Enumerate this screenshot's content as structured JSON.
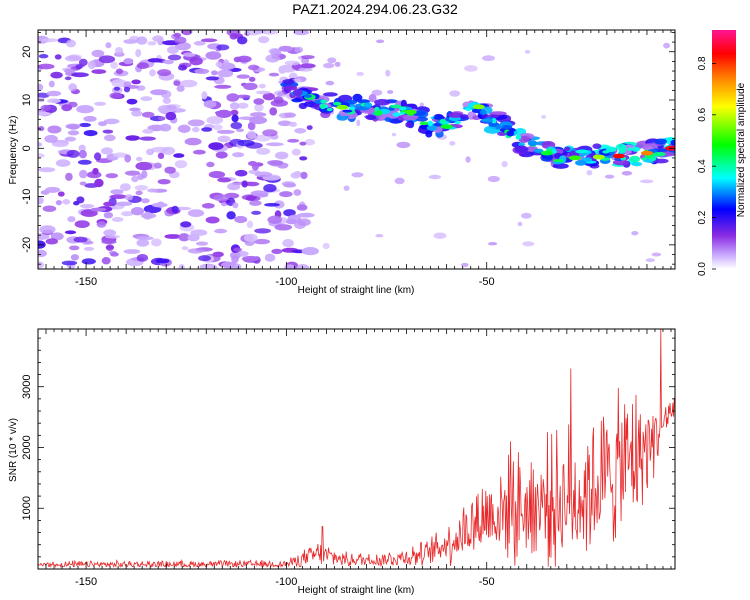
{
  "title": "PAZ1.2024.294.06.23.G32",
  "chart_data": [
    {
      "type": "heatmap",
      "xlabel": "Height of straight line (km)",
      "ylabel": "Frequency (Hz)",
      "xlim": [
        -162,
        -3
      ],
      "ylim": [
        -25,
        24.5
      ],
      "xticks": [
        -150,
        -100,
        -50
      ],
      "yticks": [
        20,
        10,
        0,
        -10,
        -20
      ],
      "colorbar": {
        "label": "Normalized spectral amplitude",
        "ticks": [
          0.0,
          0.2,
          0.4,
          0.6,
          0.8
        ],
        "tick_labels": [
          "0.0",
          "0.2",
          "0.4",
          "0.6",
          "0.8"
        ],
        "range": [
          0,
          0.93
        ],
        "colors": [
          "#ffffff",
          "#c8a8ff",
          "#8a2be2",
          "#0000ff",
          "#00ffff",
          "#00ff00",
          "#ffff00",
          "#ff8000",
          "#ff0000",
          "#ff1493"
        ]
      },
      "ridge": [
        {
          "x": -100,
          "y": 12.5
        },
        {
          "x": -92,
          "y": 9.5
        },
        {
          "x": -86,
          "y": 8.5
        },
        {
          "x": -80,
          "y": 8.5
        },
        {
          "x": -72,
          "y": 8.0
        },
        {
          "x": -64,
          "y": 5.0
        },
        {
          "x": -58,
          "y": 5.5
        },
        {
          "x": -52,
          "y": 8.5
        },
        {
          "x": -48,
          "y": 5.5
        },
        {
          "x": -40,
          "y": 0.5
        },
        {
          "x": -34,
          "y": -1.5
        },
        {
          "x": -28,
          "y": -2.0
        },
        {
          "x": -22,
          "y": -1.5
        },
        {
          "x": -16,
          "y": -1.5
        },
        {
          "x": -10,
          "y": -1.0
        },
        {
          "x": -3,
          "y": 0.0
        }
      ],
      "noise_region_x": [
        -162,
        -94
      ]
    },
    {
      "type": "line",
      "xlabel": "Height of straight line (km)",
      "ylabel": "SNR (10 * v/v)",
      "xlim": [
        -162,
        -3
      ],
      "ylim": [
        0,
        3950
      ],
      "xticks": [
        -150,
        -100,
        -50
      ],
      "yticks": [
        1000,
        2000,
        3000
      ],
      "color": "#e8282a",
      "envelope": [
        {
          "x": -162,
          "base": 70,
          "amp": 100
        },
        {
          "x": -100,
          "base": 80,
          "amp": 110
        },
        {
          "x": -92,
          "base": 250,
          "amp": 350
        },
        {
          "x": -85,
          "base": 150,
          "amp": 200
        },
        {
          "x": -75,
          "base": 160,
          "amp": 230
        },
        {
          "x": -65,
          "base": 250,
          "amp": 350
        },
        {
          "x": -58,
          "base": 500,
          "amp": 700
        },
        {
          "x": -50,
          "base": 900,
          "amp": 1200
        },
        {
          "x": -42,
          "base": 1000,
          "amp": 1500
        },
        {
          "x": -35,
          "base": 1100,
          "amp": 1800
        },
        {
          "x": -28,
          "base": 1200,
          "amp": 2000
        },
        {
          "x": -20,
          "base": 1500,
          "amp": 2000
        },
        {
          "x": -14,
          "base": 1800,
          "amp": 2100
        },
        {
          "x": -10,
          "base": 2000,
          "amp": 1300
        },
        {
          "x": -6,
          "base": 2400,
          "amp": 700
        },
        {
          "x": -3,
          "base": 2700,
          "amp": 400
        }
      ],
      "peaks": [
        {
          "x": -6.5,
          "y": 3950
        },
        {
          "x": -29,
          "y": 3300
        },
        {
          "x": -44,
          "y": 2100
        },
        {
          "x": -91,
          "y": 700
        }
      ]
    }
  ]
}
